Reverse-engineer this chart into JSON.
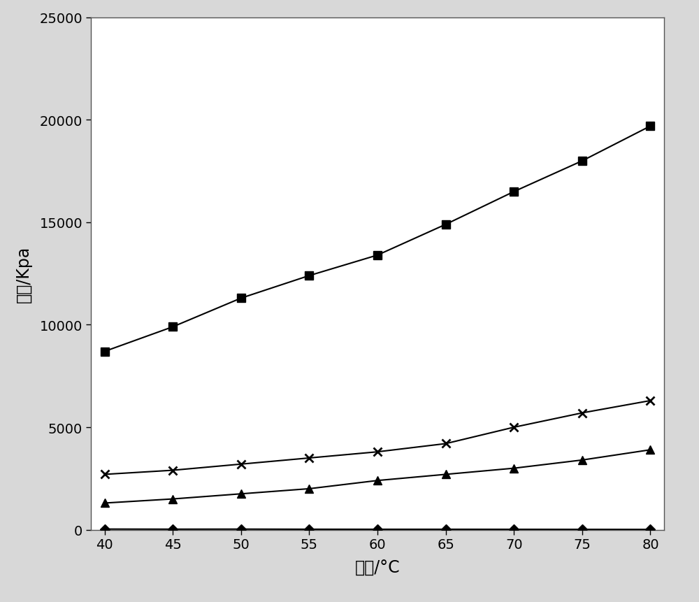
{
  "x": [
    40,
    45,
    50,
    55,
    60,
    65,
    70,
    75,
    80
  ],
  "series_square": [
    8700,
    9900,
    11300,
    12400,
    13400,
    14900,
    16500,
    18000,
    19700
  ],
  "series_cross": [
    2700,
    2900,
    3200,
    3500,
    3800,
    4200,
    5000,
    5700,
    6300
  ],
  "series_triangle": [
    1300,
    1500,
    1750,
    2000,
    2400,
    2700,
    3000,
    3400,
    3900
  ],
  "series_diamond": [
    30,
    25,
    28,
    22,
    20,
    20,
    18,
    15,
    12
  ],
  "xlabel": "温度/°C",
  "ylabel": "压力/Kpa",
  "xlim": [
    39,
    81
  ],
  "ylim": [
    0,
    25000
  ],
  "yticks": [
    0,
    5000,
    10000,
    15000,
    20000,
    25000
  ],
  "xticks": [
    40,
    45,
    50,
    55,
    60,
    65,
    70,
    75,
    80
  ],
  "line_color": "#000000",
  "figure_bg_color": "#d8d8d8",
  "plot_bg_color": "#ffffff",
  "xlabel_fontsize": 17,
  "ylabel_fontsize": 17,
  "tick_fontsize": 14,
  "marker_size_square": 8,
  "marker_size_cross": 9,
  "marker_size_triangle": 9,
  "marker_size_diamond": 7,
  "linewidth": 1.5
}
